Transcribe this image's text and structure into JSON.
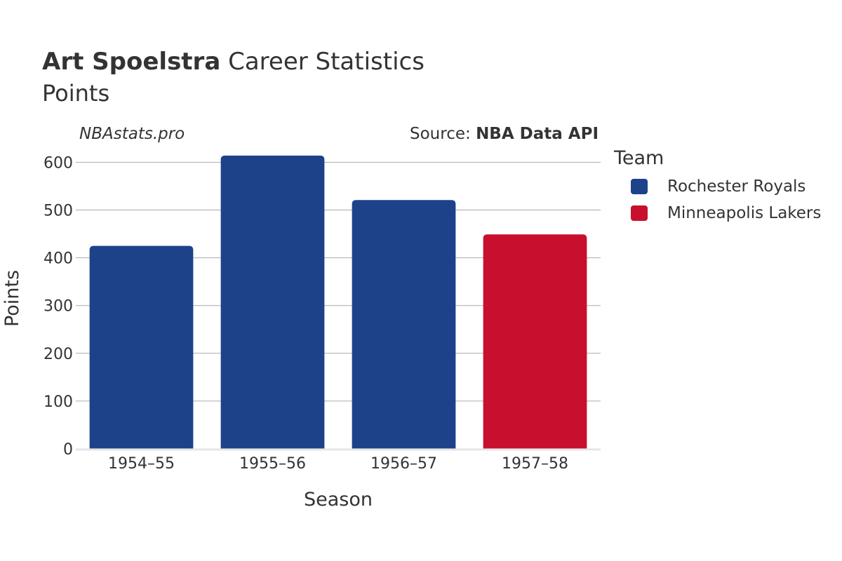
{
  "title": {
    "bold": "Art Spoelstra",
    "rest": "Career Statistics",
    "subtitle": "Points"
  },
  "watermark": "NBAstats.pro",
  "source": {
    "prefix": "Source:",
    "name": "NBA Data API"
  },
  "legend": {
    "title": "Team",
    "items": [
      {
        "label": "Rochester Royals",
        "color": "#1d428a"
      },
      {
        "label": "Minneapolis Lakers",
        "color": "#c8102e"
      }
    ]
  },
  "chart_data": {
    "type": "bar",
    "title": "Art Spoelstra Career Statistics",
    "subtitle": "Points",
    "xlabel": "Season",
    "ylabel": "Points",
    "categories": [
      "1954–55",
      "1955–56",
      "1956–57",
      "1957–58"
    ],
    "values": [
      425,
      614,
      521,
      449
    ],
    "teams": [
      "Rochester Royals",
      "Rochester Royals",
      "Rochester Royals",
      "Minneapolis Lakers"
    ],
    "colors": [
      "#1d428a",
      "#1d428a",
      "#1d428a",
      "#c8102e"
    ],
    "ylim": [
      0,
      630
    ],
    "yticks": [
      0,
      100,
      200,
      300,
      400,
      500,
      600
    ],
    "grid": true,
    "legend_position": "right"
  }
}
